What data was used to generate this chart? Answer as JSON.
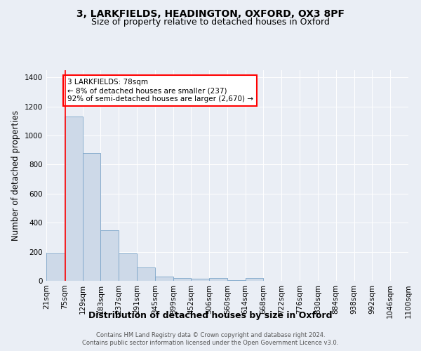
{
  "title": "3, LARKFIELDS, HEADINGTON, OXFORD, OX3 8PF",
  "subtitle": "Size of property relative to detached houses in Oxford",
  "xlabel": "Distribution of detached houses by size in Oxford",
  "ylabel": "Number of detached properties",
  "footer_line1": "Contains HM Land Registry data © Crown copyright and database right 2024.",
  "footer_line2": "Contains public sector information licensed under the Open Government Licence v3.0.",
  "annotation_line1": "3 LARKFIELDS: 78sqm",
  "annotation_line2": "← 8% of detached houses are smaller (237)",
  "annotation_line3": "92% of semi-detached houses are larger (2,670) →",
  "bar_color": "#cdd9e8",
  "bar_edge_color": "#7ba4c8",
  "red_line_x": 78,
  "categories": [
    "21sqm",
    "75sqm",
    "129sqm",
    "183sqm",
    "237sqm",
    "291sqm",
    "345sqm",
    "399sqm",
    "452sqm",
    "506sqm",
    "560sqm",
    "614sqm",
    "668sqm",
    "722sqm",
    "776sqm",
    "830sqm",
    "884sqm",
    "938sqm",
    "992sqm",
    "1046sqm",
    "1100sqm"
  ],
  "bin_edges": [
    21,
    75,
    129,
    183,
    237,
    291,
    345,
    399,
    452,
    506,
    560,
    614,
    668,
    722,
    776,
    830,
    884,
    938,
    992,
    1046,
    1100
  ],
  "values": [
    195,
    1130,
    880,
    350,
    190,
    90,
    30,
    20,
    15,
    18,
    5,
    20,
    0,
    0,
    0,
    0,
    0,
    0,
    0,
    0
  ],
  "ylim": [
    0,
    1450
  ],
  "yticks": [
    0,
    200,
    400,
    600,
    800,
    1000,
    1200,
    1400
  ],
  "background_color": "#eaeef5",
  "plot_background": "#eaeef5",
  "grid_color": "#ffffff",
  "title_fontsize": 10,
  "subtitle_fontsize": 9,
  "xlabel_fontsize": 9,
  "ylabel_fontsize": 8.5,
  "tick_fontsize": 7.5,
  "footer_fontsize": 6
}
